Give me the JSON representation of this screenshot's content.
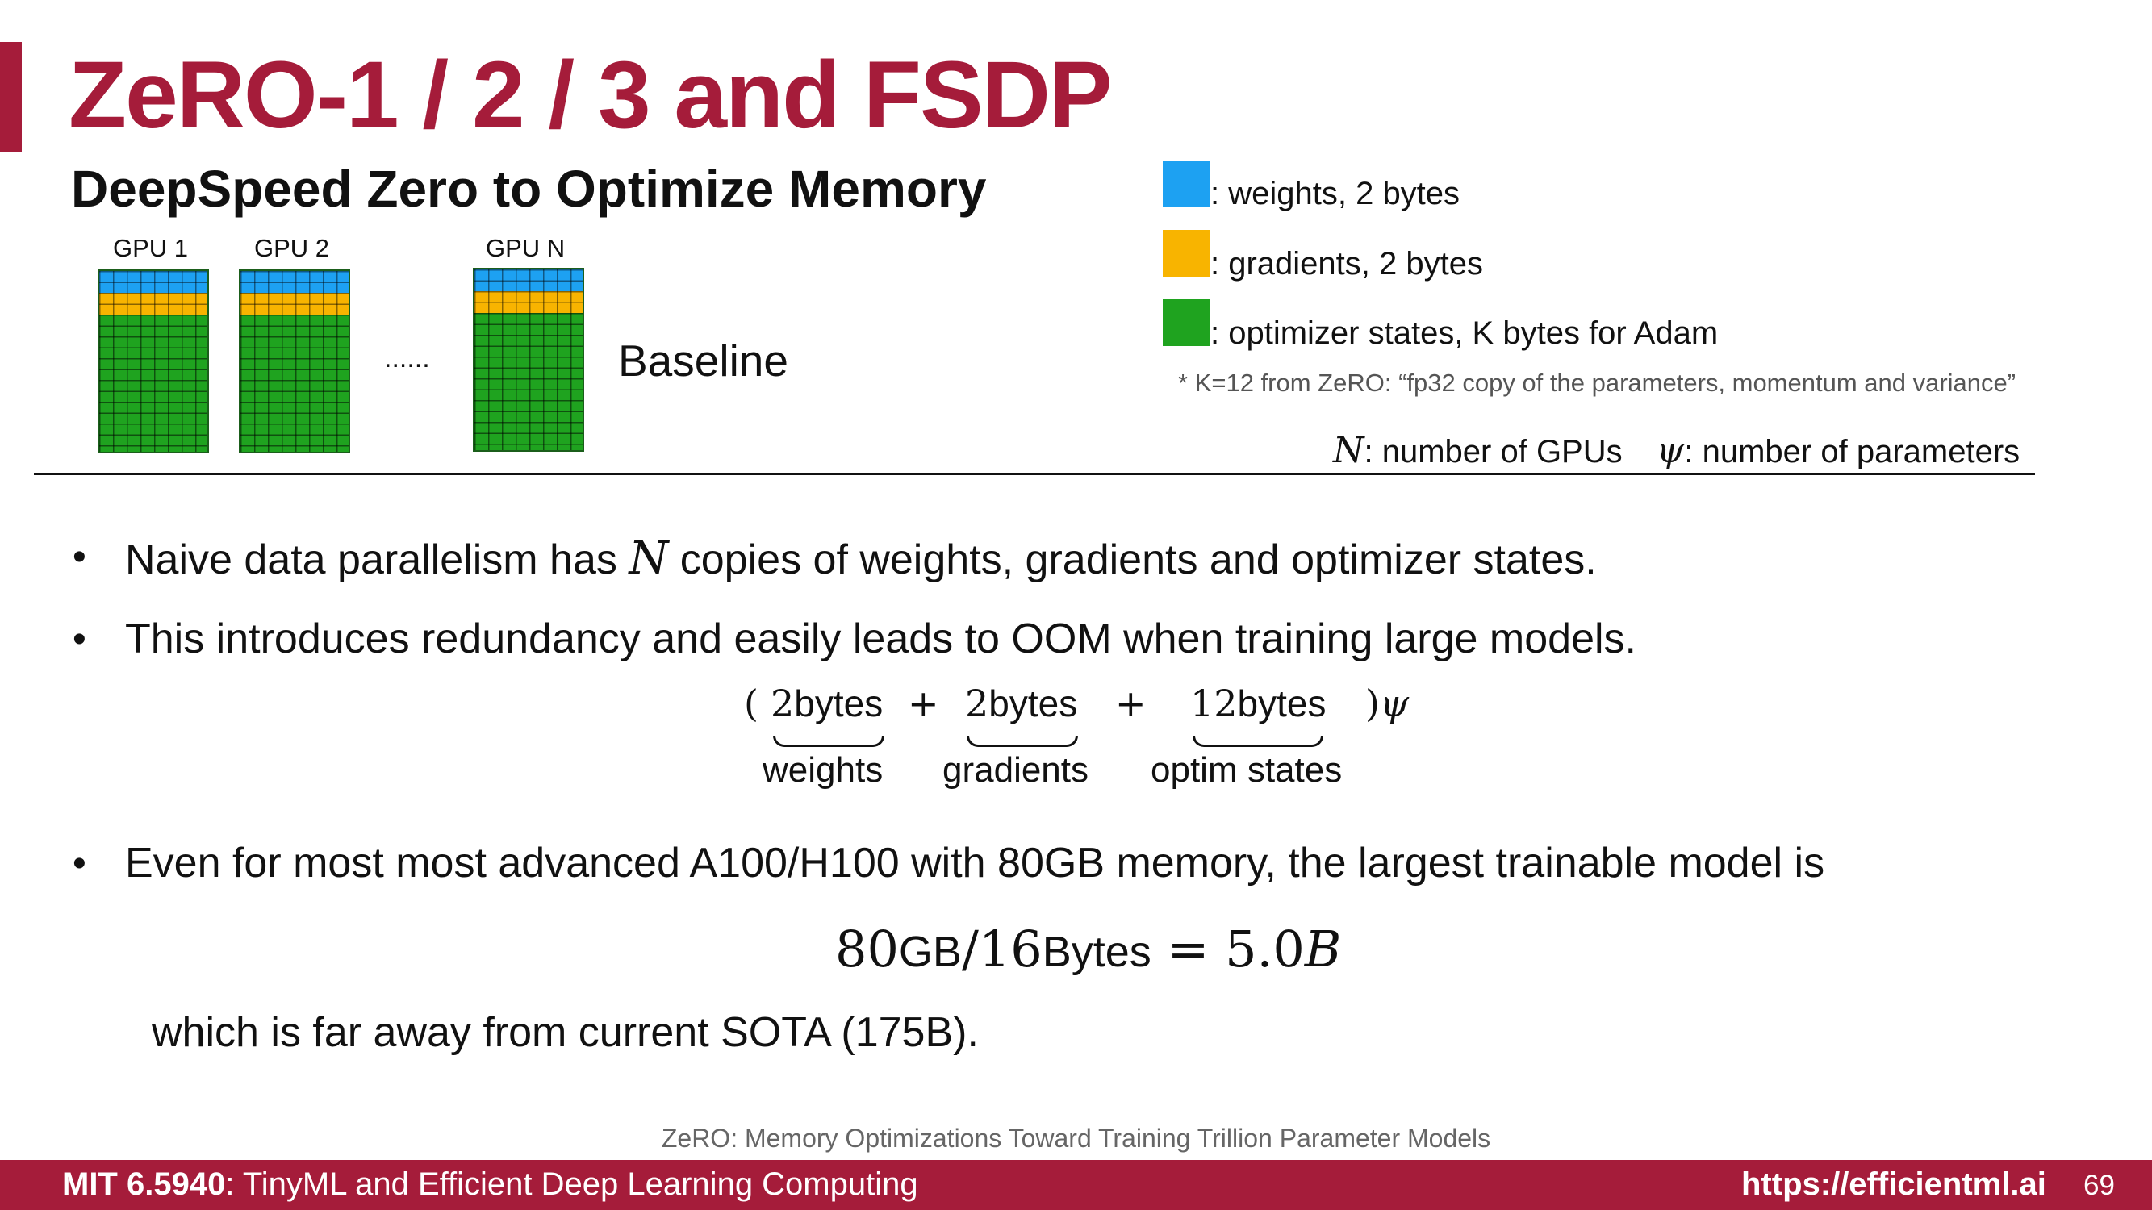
{
  "slide": {
    "title": "ZeRO-1 / 2 / 3 and FSDP",
    "subtitle": "DeepSpeed Zero to Optimize Memory"
  },
  "diagram": {
    "gpus": [
      {
        "label": "GPU 1"
      },
      {
        "label": "GPU 2"
      },
      {
        "label": "GPU N"
      }
    ],
    "ellipsis": "......",
    "caption": "Baseline"
  },
  "legend": {
    "items": [
      {
        "color": "#1da1f2",
        "text": ": weights,  2 bytes"
      },
      {
        "color": "#f8b400",
        "text": ": gradients, 2 bytes"
      },
      {
        "color": "#1fa31f",
        "text": ": optimizer states, K bytes for Adam"
      }
    ],
    "footnote": "* K=12 from ZeRO: “fp32 copy of the parameters, momentum and variance”",
    "n_symbol": "N",
    "n_text": ": number of GPUs",
    "psi_symbol": "ψ",
    "psi_text": ": number of parameters"
  },
  "bullets": {
    "b1_pre": "Naive data parallelism has ",
    "b1_sym": "N",
    "b1_post": " copies of weights, gradients and optimizer states.",
    "b2": "This introduces redundancy and easily leads to OOM when training large models.",
    "b3": "Even for most most advanced A100/H100 with 80GB memory, the largest trainable model is"
  },
  "formula": {
    "open": "(",
    "t1_num": "2",
    "t1_unit": "bytes",
    "plus1": "+",
    "t2_num": "2",
    "t2_unit": "bytes",
    "plus2": "+",
    "t3_num": "12",
    "t3_unit": "bytes",
    "close": ")",
    "psi": "ψ",
    "u1": "weights",
    "u2": "gradients",
    "u3": "optim states"
  },
  "equation": {
    "n1": "80",
    "u1": "GB",
    "slash": "/",
    "n2": "16",
    "u2": "Bytes",
    "eq": " = ",
    "result": "5.0",
    "b": "B"
  },
  "sota": "which is far away from current SOTA (175B).",
  "reference": "ZeRO: Memory Optimizations Toward Training Trillion Parameter Models",
  "footer": {
    "course_code": "MIT 6.5940",
    "course_name": ": TinyML and Efficient Deep Learning Computing",
    "url": "https://efficientml.ai",
    "page": "69"
  },
  "colors": {
    "accent": "#a51c3a",
    "weights": "#1da1f2",
    "gradients": "#f8b400",
    "optimizer": "#1fa31f"
  }
}
